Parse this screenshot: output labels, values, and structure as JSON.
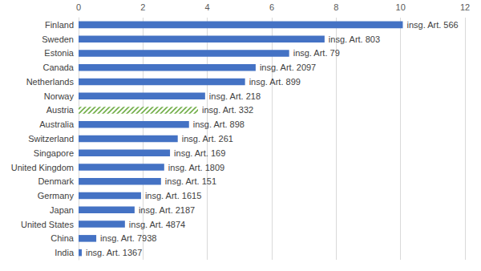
{
  "chart_data": {
    "type": "bar",
    "orientation": "horizontal",
    "categories": [
      "Finland",
      "Sweden",
      "Estonia",
      "Canada",
      "Netherlands",
      "Norway",
      "Austria",
      "Australia",
      "Switzerland",
      "Singapore",
      "United Kingdom",
      "Denmark",
      "Germany",
      "Japan",
      "United States",
      "China",
      "India"
    ],
    "values": [
      10.07,
      7.64,
      6.54,
      5.5,
      5.17,
      3.93,
      3.71,
      3.43,
      3.08,
      2.84,
      2.66,
      2.56,
      1.94,
      1.74,
      1.44,
      0.55,
      0.1
    ],
    "annotations": [
      "insg. Art. 566",
      "insg. Art. 803",
      "insg. Art. 79",
      "insg. Art. 2097",
      "insg. Art. 899",
      "insg. Art. 218",
      "insg. Art. 332",
      "insg. Art. 898",
      "insg. Art. 261",
      "insg. Art. 169",
      "insg. Art. 1809",
      "insg. Art. 151",
      "insg. Art. 1615",
      "insg. Art. 2187",
      "insg. Art. 4874",
      "insg. Art. 7938",
      "insg. Art. 1367"
    ],
    "colors": [
      "#4472c4",
      "#4472c4",
      "#4472c4",
      "#4472c4",
      "#4472c4",
      "#4472c4",
      "#70ad47",
      "#4472c4",
      "#4472c4",
      "#4472c4",
      "#4472c4",
      "#4472c4",
      "#4472c4",
      "#4472c4",
      "#4472c4",
      "#4472c4",
      "#4472c4"
    ],
    "xlim": [
      0,
      12
    ],
    "xticks": [
      0,
      2,
      4,
      6,
      8,
      10,
      12
    ],
    "grid": true,
    "data_labels": false
  }
}
